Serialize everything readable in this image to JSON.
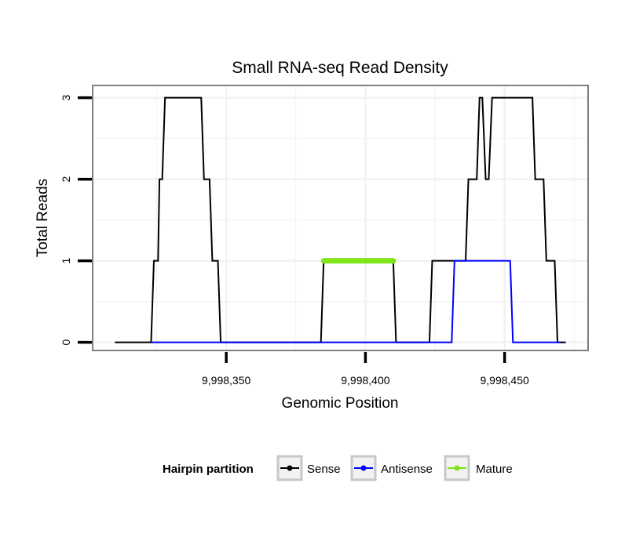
{
  "chart_data": {
    "type": "line",
    "title": "Small RNA-seq Read Density",
    "xlabel": "Genomic Position",
    "ylabel": "Total Reads",
    "xlim": [
      9998302,
      9998480
    ],
    "ylim": [
      -0.1,
      3.15
    ],
    "x_ticks": [
      {
        "value": 9998350,
        "label": "9,998,350"
      },
      {
        "value": 9998400,
        "label": "9,998,400"
      },
      {
        "value": 9998450,
        "label": "9,998,450"
      }
    ],
    "y_ticks": [
      {
        "value": 0,
        "label": "0"
      },
      {
        "value": 1,
        "label": "1"
      },
      {
        "value": 2,
        "label": "2"
      },
      {
        "value": 3,
        "label": "3"
      }
    ],
    "grid": true,
    "legend": {
      "title": "Hairpin partition",
      "position": "bottom",
      "entries": [
        "Sense",
        "Antisense",
        "Mature"
      ]
    },
    "series": [
      {
        "name": "Sense",
        "color": "#000000",
        "points": [
          [
            9998310,
            0
          ],
          [
            9998323,
            0
          ],
          [
            9998324,
            1
          ],
          [
            9998325.5,
            1
          ],
          [
            9998326,
            2
          ],
          [
            9998327,
            2
          ],
          [
            9998328,
            3
          ],
          [
            9998341,
            3
          ],
          [
            9998342,
            2
          ],
          [
            9998344,
            2
          ],
          [
            9998345,
            1
          ],
          [
            9998347,
            1
          ],
          [
            9998348,
            0
          ],
          [
            9998384,
            0
          ],
          [
            9998385,
            1
          ],
          [
            9998410,
            1
          ],
          [
            9998411,
            0
          ],
          [
            9998423,
            0
          ],
          [
            9998424,
            1
          ],
          [
            9998434,
            1
          ],
          [
            9998436,
            1
          ],
          [
            9998437,
            2
          ],
          [
            9998440,
            2
          ],
          [
            9998441,
            3
          ],
          [
            9998442,
            3
          ],
          [
            9998443.2,
            2
          ],
          [
            9998444.3,
            2
          ],
          [
            9998445.5,
            3
          ],
          [
            9998460,
            3
          ],
          [
            9998461,
            2
          ],
          [
            9998464,
            2
          ],
          [
            9998465,
            1
          ],
          [
            9998468,
            1
          ],
          [
            9998469,
            0
          ],
          [
            9998472,
            0
          ]
        ]
      },
      {
        "name": "Antisense",
        "color": "#0000ff",
        "points": [
          [
            9998323,
            0
          ],
          [
            9998348,
            0
          ],
          [
            9998384,
            0
          ],
          [
            9998411,
            0
          ],
          [
            9998423,
            0
          ],
          [
            9998431,
            0
          ],
          [
            9998432,
            1
          ],
          [
            9998452,
            1
          ],
          [
            9998453,
            0
          ],
          [
            9998470,
            0
          ]
        ]
      },
      {
        "name": "Mature",
        "color": "#7fe51a",
        "points": [
          [
            9998385,
            1
          ],
          [
            9998410,
            1
          ]
        ]
      }
    ]
  }
}
